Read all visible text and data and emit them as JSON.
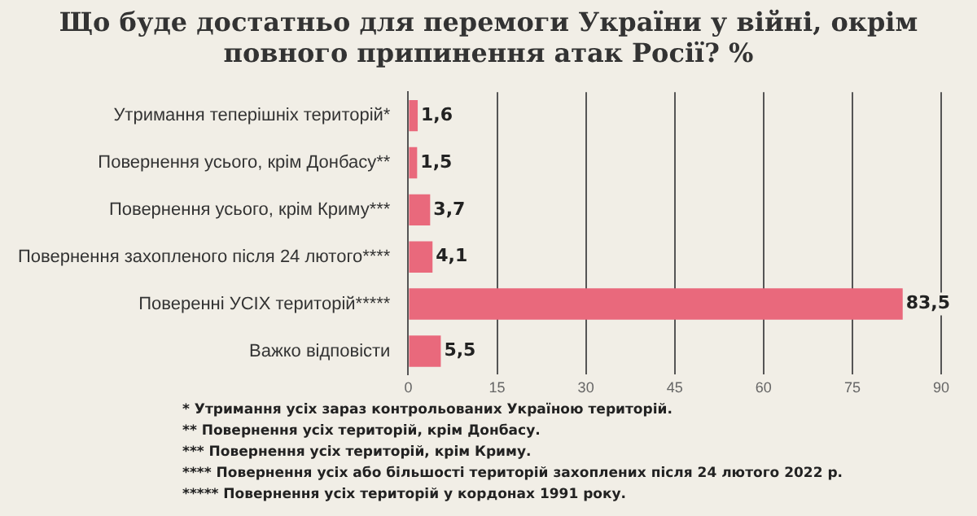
{
  "chart_data": {
    "type": "bar",
    "orientation": "horizontal",
    "title": "Що буде достатньо для перемоги України у війні, окрім повного припинення атак Росії? %",
    "categories": [
      "Утримання теперішніх територій*",
      "Повернення усього, крім Донбасу**",
      "Повернення усього, крім Криму***",
      "Повернення захопленого після 24 лютого****",
      "Поверенні УСІХ територій*****",
      "Важко відповісти"
    ],
    "values": [
      1.6,
      1.5,
      3.7,
      4.1,
      83.5,
      5.5
    ],
    "value_labels": [
      "1,6",
      "1,5",
      "3,7",
      "4,1",
      "83,5",
      "5,5"
    ],
    "color": "#e9697c",
    "xlim": [
      0,
      90
    ],
    "xticks": [
      0,
      15,
      30,
      45,
      60,
      75,
      90
    ],
    "grid": "x",
    "legend": false,
    "annotations": [
      "* Утримання усіх зараз контрольованих Україною територій.",
      "** Повернення усіх територій, крім Донбасу.",
      "*** Повернення усіх територій, крім Криму.",
      "**** Повернення усіх або більшості територій захоплених після 24 лютого 2022 р.",
      "***** Повернення усіх територій у кордонах 1991 року."
    ]
  }
}
